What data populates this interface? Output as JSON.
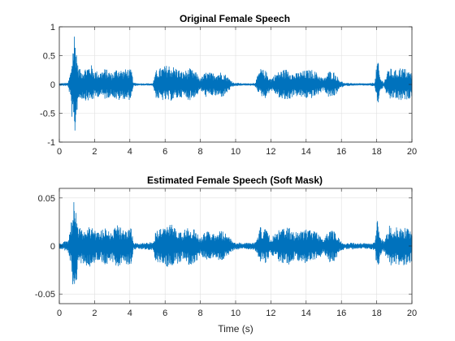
{
  "chart_data": [
    {
      "type": "line",
      "title": "Original Female Speech",
      "xlabel": "",
      "ylabel": "",
      "xlim": [
        0,
        20
      ],
      "ylim": [
        -1,
        1
      ],
      "xticks": [
        0,
        2,
        4,
        6,
        8,
        10,
        12,
        14,
        16,
        18,
        20
      ],
      "yticks": [
        -1,
        -0.5,
        0,
        0.5,
        1
      ],
      "ytick_labels": [
        "-1",
        "-0.5",
        "0",
        "0.5",
        "1"
      ],
      "grid": true,
      "line_color": "#0072BD",
      "envelope": {
        "time_s": [
          0,
          0.5,
          0.65,
          0.75,
          0.85,
          0.95,
          1.05,
          1.2,
          1.5,
          1.8,
          2.0,
          2.3,
          2.6,
          3.0,
          3.3,
          3.6,
          3.9,
          4.1,
          4.2,
          4.5,
          5.0,
          5.3,
          5.5,
          5.8,
          6.2,
          6.6,
          7.0,
          7.4,
          7.8,
          8.0,
          8.3,
          8.7,
          9.0,
          9.3,
          9.6,
          9.9,
          10.1,
          10.4,
          10.8,
          11.1,
          11.4,
          11.7,
          12.0,
          12.3,
          12.6,
          13.0,
          13.3,
          13.6,
          14.0,
          14.4,
          14.7,
          15.0,
          15.3,
          15.6,
          15.9,
          16.2,
          16.5,
          16.8,
          17.2,
          17.6,
          17.9,
          18.05,
          18.2,
          18.4,
          18.7,
          19.0,
          19.3,
          19.6,
          19.9,
          20.0
        ],
        "upper": [
          0.02,
          0.03,
          0.25,
          0.6,
          0.95,
          0.75,
          0.35,
          0.25,
          0.3,
          0.35,
          0.25,
          0.22,
          0.28,
          0.2,
          0.3,
          0.25,
          0.28,
          0.25,
          0.03,
          0.02,
          0.02,
          0.02,
          0.25,
          0.3,
          0.35,
          0.3,
          0.22,
          0.28,
          0.2,
          0.1,
          0.22,
          0.2,
          0.22,
          0.22,
          0.12,
          0.03,
          0.03,
          0.02,
          0.02,
          0.03,
          0.28,
          0.24,
          0.1,
          0.2,
          0.25,
          0.28,
          0.18,
          0.22,
          0.25,
          0.26,
          0.18,
          0.1,
          0.24,
          0.22,
          0.08,
          0.02,
          0.03,
          0.02,
          0.02,
          0.02,
          0.04,
          0.48,
          0.12,
          0.04,
          0.3,
          0.24,
          0.3,
          0.28,
          0.22,
          0.2
        ],
        "lower": [
          -0.02,
          -0.03,
          -0.3,
          -0.75,
          -1.0,
          -0.7,
          -0.3,
          -0.25,
          -0.28,
          -0.3,
          -0.25,
          -0.2,
          -0.26,
          -0.2,
          -0.3,
          -0.25,
          -0.28,
          -0.25,
          -0.03,
          -0.02,
          -0.02,
          -0.02,
          -0.25,
          -0.28,
          -0.3,
          -0.26,
          -0.22,
          -0.28,
          -0.2,
          -0.1,
          -0.22,
          -0.2,
          -0.22,
          -0.22,
          -0.12,
          -0.03,
          -0.03,
          -0.02,
          -0.02,
          -0.03,
          -0.2,
          -0.24,
          -0.1,
          -0.18,
          -0.28,
          -0.28,
          -0.2,
          -0.22,
          -0.25,
          -0.24,
          -0.18,
          -0.1,
          -0.24,
          -0.22,
          -0.08,
          -0.02,
          -0.03,
          -0.02,
          -0.02,
          -0.02,
          -0.04,
          -0.4,
          -0.12,
          -0.04,
          -0.3,
          -0.24,
          -0.3,
          -0.28,
          -0.24,
          -0.2
        ]
      }
    },
    {
      "type": "line",
      "title": "Estimated Female Speech (Soft Mask)",
      "xlabel": "Time (s)",
      "ylabel": "",
      "xlim": [
        0,
        20
      ],
      "ylim": [
        -0.06,
        0.06
      ],
      "xticks": [
        0,
        2,
        4,
        6,
        8,
        10,
        12,
        14,
        16,
        18,
        20
      ],
      "yticks": [
        -0.05,
        0,
        0.05
      ],
      "ytick_labels": [
        "-0.05",
        "0",
        "0.05"
      ],
      "grid": true,
      "line_color": "#0072BD",
      "envelope": {
        "time_s": [
          0,
          0.5,
          0.65,
          0.75,
          0.85,
          0.95,
          1.05,
          1.2,
          1.5,
          1.8,
          2.0,
          2.3,
          2.6,
          3.0,
          3.3,
          3.6,
          3.9,
          4.1,
          4.2,
          4.5,
          5.0,
          5.3,
          5.5,
          5.8,
          6.2,
          6.6,
          7.0,
          7.4,
          7.8,
          8.0,
          8.3,
          8.7,
          9.0,
          9.3,
          9.6,
          9.9,
          10.1,
          10.4,
          10.8,
          11.1,
          11.4,
          11.7,
          12.0,
          12.3,
          12.6,
          13.0,
          13.3,
          13.6,
          14.0,
          14.4,
          14.7,
          15.0,
          15.3,
          15.6,
          15.9,
          16.2,
          16.5,
          16.8,
          17.2,
          17.6,
          17.9,
          18.05,
          18.2,
          18.4,
          18.7,
          19.0,
          19.3,
          19.6,
          19.9,
          20.0
        ],
        "upper": [
          0.003,
          0.006,
          0.02,
          0.04,
          0.06,
          0.045,
          0.022,
          0.018,
          0.02,
          0.022,
          0.018,
          0.015,
          0.02,
          0.016,
          0.022,
          0.018,
          0.02,
          0.018,
          0.004,
          0.003,
          0.004,
          0.004,
          0.018,
          0.02,
          0.024,
          0.02,
          0.016,
          0.02,
          0.016,
          0.008,
          0.016,
          0.014,
          0.016,
          0.016,
          0.01,
          0.004,
          0.004,
          0.003,
          0.004,
          0.004,
          0.02,
          0.018,
          0.008,
          0.015,
          0.018,
          0.02,
          0.014,
          0.016,
          0.018,
          0.018,
          0.014,
          0.008,
          0.017,
          0.016,
          0.007,
          0.003,
          0.004,
          0.003,
          0.003,
          0.003,
          0.005,
          0.03,
          0.01,
          0.005,
          0.022,
          0.018,
          0.022,
          0.02,
          0.016,
          0.015
        ],
        "lower": [
          -0.003,
          -0.006,
          -0.022,
          -0.045,
          -0.06,
          -0.045,
          -0.02,
          -0.018,
          -0.02,
          -0.022,
          -0.018,
          -0.015,
          -0.02,
          -0.016,
          -0.022,
          -0.018,
          -0.02,
          -0.018,
          -0.004,
          -0.003,
          -0.004,
          -0.004,
          -0.018,
          -0.02,
          -0.022,
          -0.02,
          -0.016,
          -0.02,
          -0.016,
          -0.008,
          -0.016,
          -0.014,
          -0.016,
          -0.016,
          -0.01,
          -0.004,
          -0.004,
          -0.003,
          -0.004,
          -0.004,
          -0.016,
          -0.018,
          -0.008,
          -0.014,
          -0.02,
          -0.02,
          -0.015,
          -0.016,
          -0.018,
          -0.017,
          -0.014,
          -0.008,
          -0.017,
          -0.016,
          -0.007,
          -0.003,
          -0.004,
          -0.003,
          -0.003,
          -0.003,
          -0.005,
          -0.034,
          -0.01,
          -0.005,
          -0.022,
          -0.018,
          -0.022,
          -0.02,
          -0.018,
          -0.015
        ]
      }
    }
  ]
}
